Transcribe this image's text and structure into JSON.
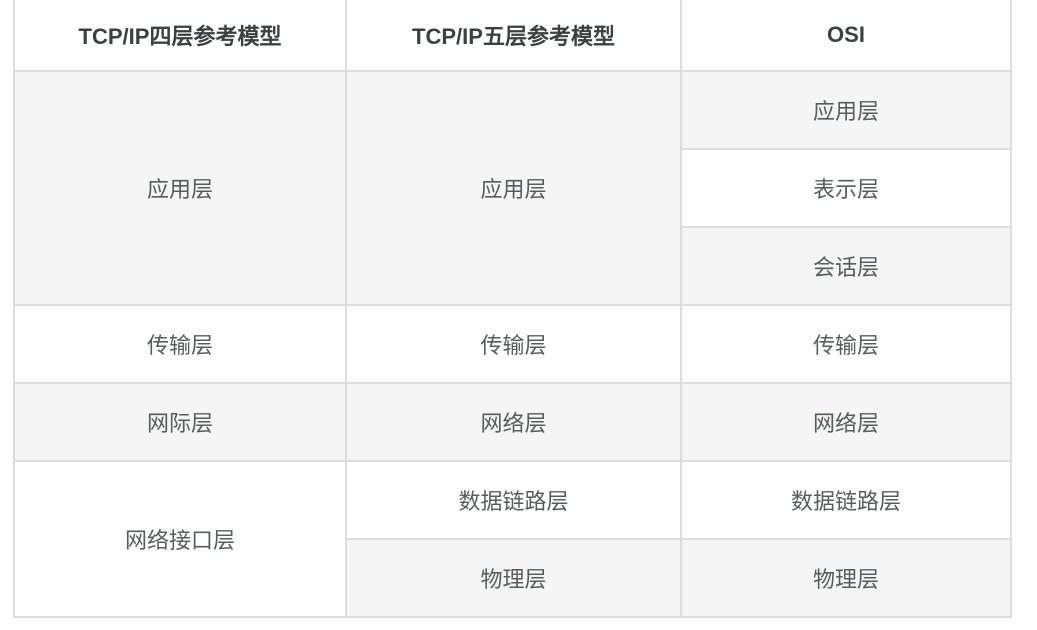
{
  "table": {
    "headers": [
      "TCP/IP四层参考模型",
      "TCP/IP五层参考模型",
      "OSI"
    ],
    "rows": [
      {
        "cells": [
          {
            "text": "应用层",
            "rowspan": 3,
            "shaded": true
          },
          {
            "text": "应用层",
            "rowspan": 3,
            "shaded": true
          },
          {
            "text": "应用层",
            "rowspan": 1,
            "shaded": true
          }
        ]
      },
      {
        "cells": [
          {
            "text": "表示层",
            "rowspan": 1,
            "shaded": false
          }
        ]
      },
      {
        "cells": [
          {
            "text": "会话层",
            "rowspan": 1,
            "shaded": true
          }
        ]
      },
      {
        "cells": [
          {
            "text": "传输层",
            "rowspan": 1,
            "shaded": false
          },
          {
            "text": "传输层",
            "rowspan": 1,
            "shaded": false
          },
          {
            "text": "传输层",
            "rowspan": 1,
            "shaded": false
          }
        ]
      },
      {
        "cells": [
          {
            "text": "网际层",
            "rowspan": 1,
            "shaded": true
          },
          {
            "text": "网络层",
            "rowspan": 1,
            "shaded": true
          },
          {
            "text": "网络层",
            "rowspan": 1,
            "shaded": true
          }
        ]
      },
      {
        "cells": [
          {
            "text": "网络接口层",
            "rowspan": 2,
            "shaded": false
          },
          {
            "text": "数据链路层",
            "rowspan": 1,
            "shaded": false
          },
          {
            "text": "数据链路层",
            "rowspan": 1,
            "shaded": false
          }
        ]
      },
      {
        "cells": [
          {
            "text": "物理层",
            "rowspan": 1,
            "shaded": true
          },
          {
            "text": "物理层",
            "rowspan": 1,
            "shaded": true
          }
        ]
      }
    ]
  },
  "chart_data": {
    "type": "table",
    "title": "",
    "columns": [
      "TCP/IP四层参考模型",
      "TCP/IP五层参考模型",
      "OSI"
    ],
    "mapping": [
      {
        "tcpip4": "应用层",
        "tcpip5": "应用层",
        "osi": [
          "应用层",
          "表示层",
          "会话层"
        ]
      },
      {
        "tcpip4": "传输层",
        "tcpip5": "传输层",
        "osi": [
          "传输层"
        ]
      },
      {
        "tcpip4": "网际层",
        "tcpip5": "网络层",
        "osi": [
          "网络层"
        ]
      },
      {
        "tcpip4": "网络接口层",
        "tcpip5": [
          "数据链路层",
          "物理层"
        ],
        "osi": [
          "数据链路层",
          "物理层"
        ]
      }
    ]
  },
  "colors": {
    "shaded_bg": "#f5f5f5",
    "border": "#dddddd",
    "header_text": "#3d4043",
    "body_text": "#595c5f",
    "page_bg": "#ffffff"
  }
}
